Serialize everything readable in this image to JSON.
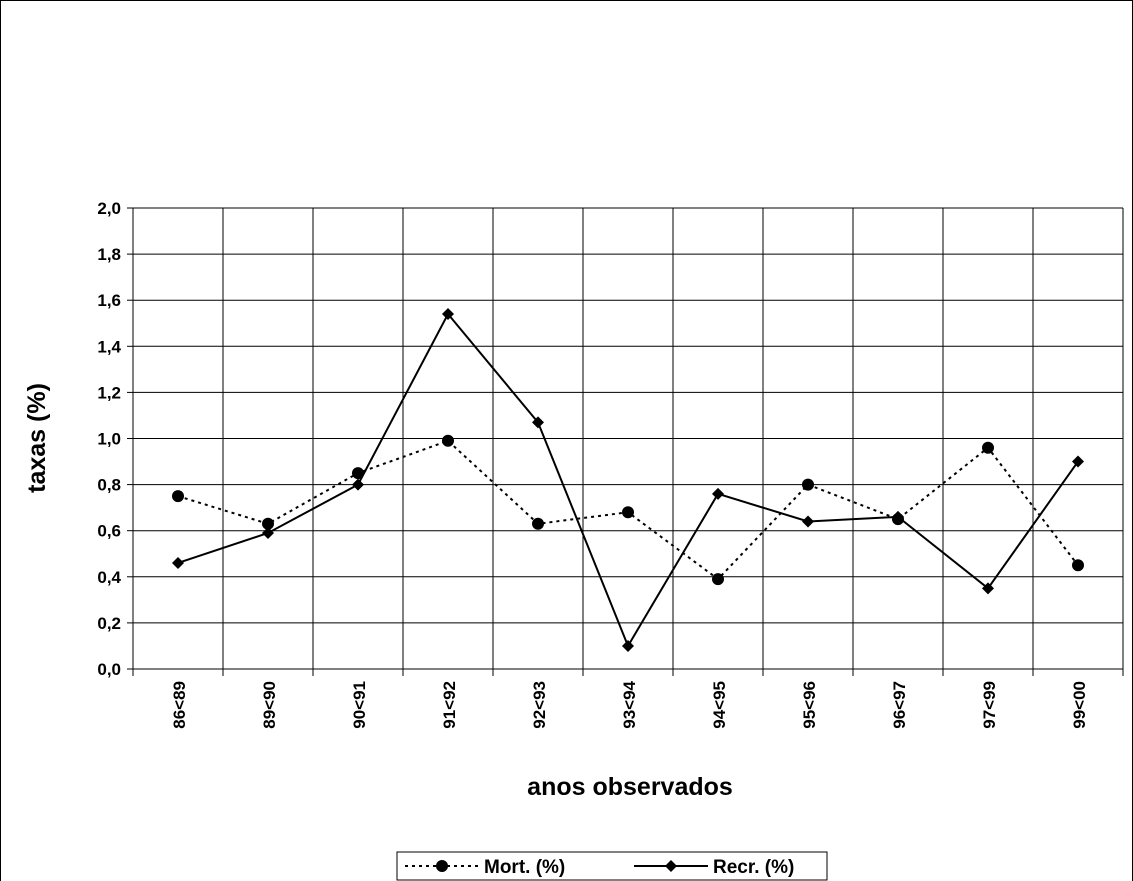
{
  "chart_data": {
    "type": "line",
    "categories": [
      "86<89",
      "89<90",
      "90<91",
      "91<92",
      "92<93",
      "93<94",
      "94<95",
      "95<96",
      "96<97",
      "97<99",
      "99<00"
    ],
    "series": [
      {
        "name": "Mort. (%)",
        "values": [
          0.75,
          0.63,
          0.85,
          0.99,
          0.63,
          0.68,
          0.39,
          0.8,
          0.65,
          0.96,
          0.45
        ],
        "line_style": "dotted",
        "marker": "circle"
      },
      {
        "name": "Recr. (%)",
        "values": [
          0.46,
          0.59,
          0.8,
          1.54,
          1.07,
          0.1,
          0.76,
          0.64,
          0.66,
          0.35,
          0.9
        ],
        "line_style": "solid",
        "marker": "diamond"
      }
    ],
    "yticks": [
      "0,0",
      "0,2",
      "0,4",
      "0,6",
      "0,8",
      "1,0",
      "1,2",
      "1,4",
      "1,6",
      "1,8",
      "2,0"
    ],
    "ylim": [
      0,
      2
    ],
    "xlabel": "anos observados",
    "ylabel": "taxas (%)",
    "grid": true,
    "legend_position": "bottom",
    "colors": {
      "lines": "#000000",
      "grid": "#000000",
      "background": "#ffffff"
    }
  }
}
